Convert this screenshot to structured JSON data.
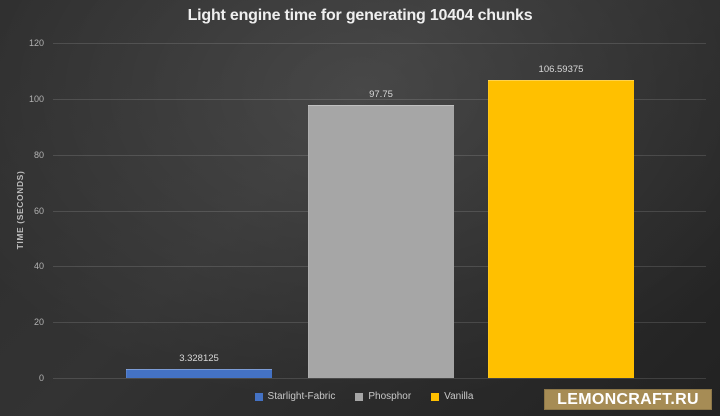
{
  "chart_data": {
    "type": "bar",
    "title": "Light engine time for generating 10404 chunks",
    "categories": [
      "Starlight-Fabric",
      "Phosphor",
      "Vanilla"
    ],
    "values": [
      3.328125,
      97.75,
      106.59375
    ],
    "value_labels": [
      "3.328125",
      "97.75",
      "106.59375"
    ],
    "series_colors": [
      "#4472c4",
      "#a6a6a6",
      "#ffc000"
    ],
    "xlabel": "",
    "ylabel": "TIME (SECONDS)",
    "ylim": [
      0,
      120
    ],
    "yticks": [
      0,
      20,
      40,
      60,
      80,
      100,
      120
    ],
    "grid": true,
    "legend_position": "bottom"
  },
  "legend": {
    "items": [
      {
        "label": "Starlight-Fabric",
        "color": "#4472c4"
      },
      {
        "label": "Phosphor",
        "color": "#a6a6a6"
      },
      {
        "label": "Vanilla",
        "color": "#ffc000"
      }
    ]
  },
  "watermark": {
    "text": "LEMONCRAFT.RU",
    "bg_color": "#a68c55"
  }
}
